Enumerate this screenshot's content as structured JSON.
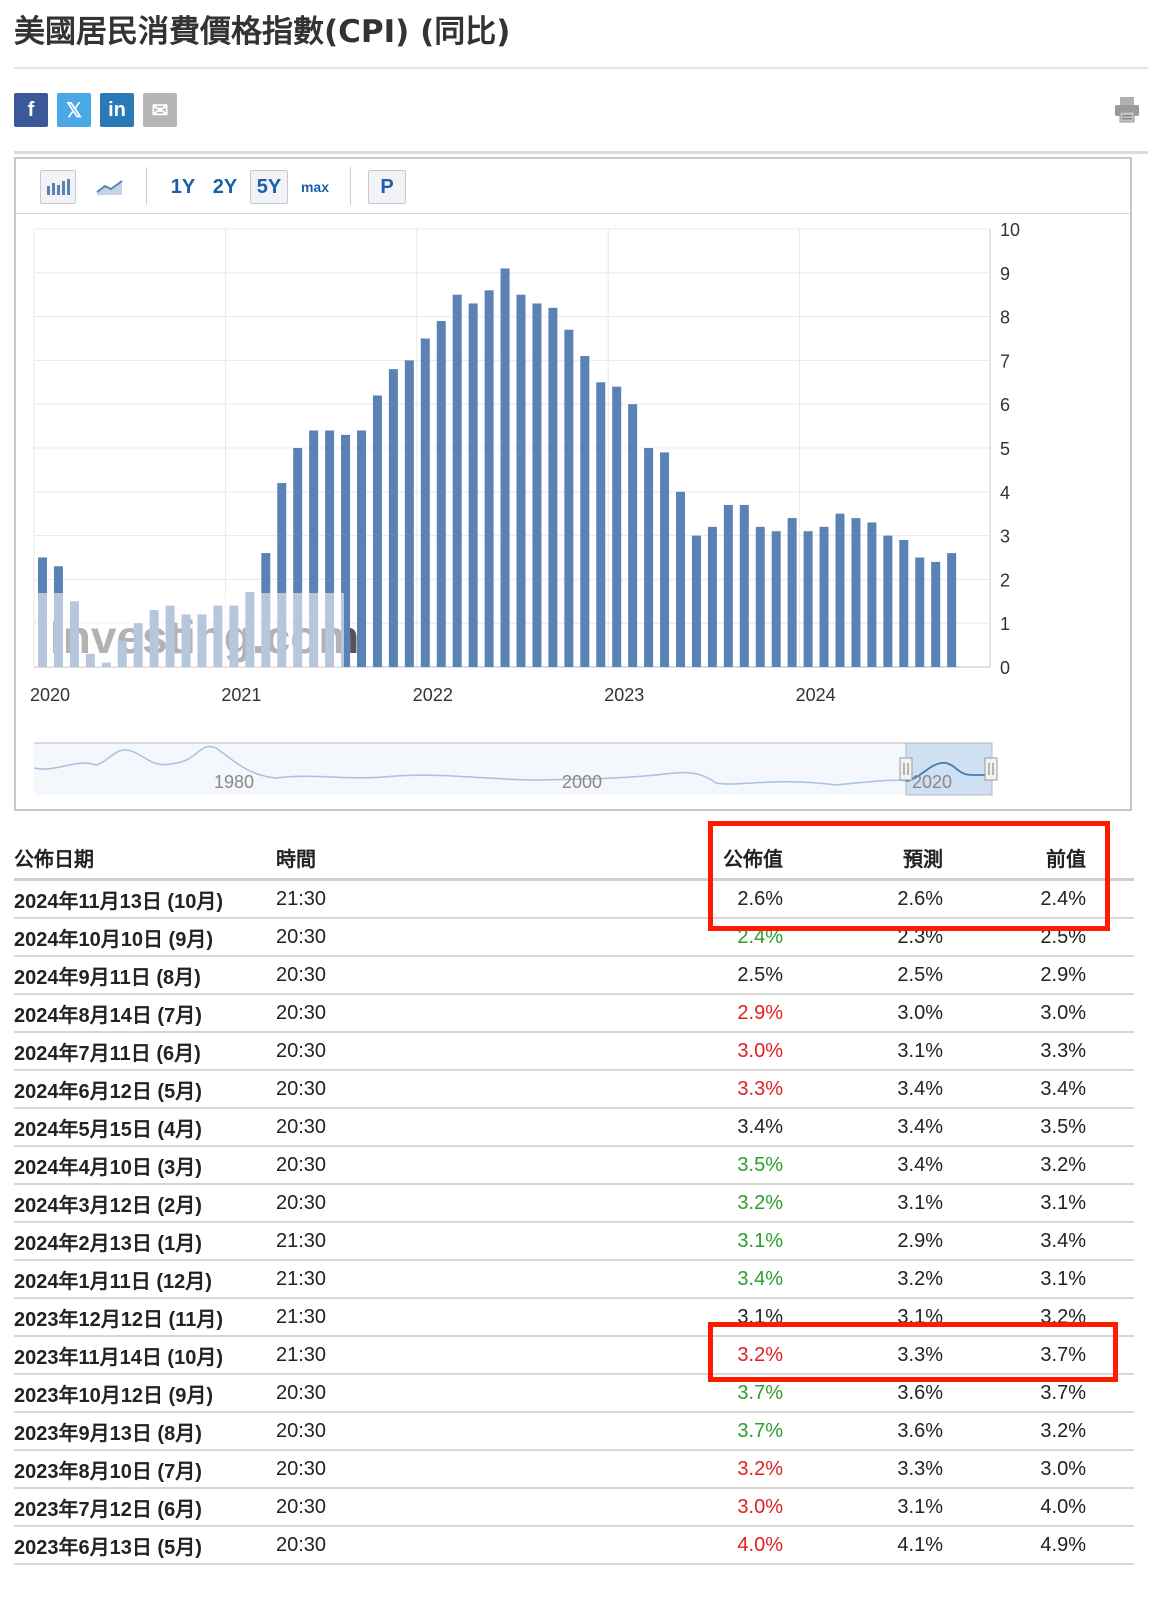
{
  "page": {
    "title": "美國居民消費價格指數(CPI) (同比)"
  },
  "share": [
    {
      "name": "facebook-share-button",
      "icon": "facebook-icon",
      "glyph": "f",
      "color": "#3b5998"
    },
    {
      "name": "twitter-share-button",
      "icon": "x-icon",
      "glyph": "𝕏",
      "color": "#4aa8e6"
    },
    {
      "name": "linkedin-share-button",
      "icon": "linkedin-icon",
      "glyph": "in",
      "color": "#2a7ab8"
    },
    {
      "name": "email-share-button",
      "icon": "mail-icon",
      "glyph": "✉",
      "color": "#b5b5b5"
    }
  ],
  "toolbar": {
    "bar_chart_icon": "bar-chart-icon",
    "area_chart_icon": "area-chart-icon",
    "ranges": [
      "1Y",
      "2Y",
      "5Y",
      "max"
    ],
    "selected_range": "5Y",
    "p_label": "P"
  },
  "chart_data": {
    "type": "bar",
    "title": "",
    "xlabel": "",
    "ylabel": "",
    "ylim": [
      0,
      10
    ],
    "yticks": [
      0,
      1,
      2,
      3,
      4,
      5,
      6,
      7,
      8,
      9,
      10
    ],
    "y_axis_side": "right",
    "x_tick_labels": [
      "2020",
      "2021",
      "2022",
      "2023",
      "2024"
    ],
    "grid": true,
    "color": "#5b82b4",
    "watermark": "Investing.com",
    "categories": [
      "2020-01",
      "2020-02",
      "2020-03",
      "2020-04",
      "2020-05",
      "2020-06",
      "2020-07",
      "2020-08",
      "2020-09",
      "2020-10",
      "2020-11",
      "2020-12",
      "2021-01",
      "2021-02",
      "2021-03",
      "2021-04",
      "2021-05",
      "2021-06",
      "2021-07",
      "2021-08",
      "2021-09",
      "2021-10",
      "2021-11",
      "2021-12",
      "2022-01",
      "2022-02",
      "2022-03",
      "2022-04",
      "2022-05",
      "2022-06",
      "2022-07",
      "2022-08",
      "2022-09",
      "2022-10",
      "2022-11",
      "2022-12",
      "2023-01",
      "2023-02",
      "2023-03",
      "2023-04",
      "2023-05",
      "2023-06",
      "2023-07",
      "2023-08",
      "2023-09",
      "2023-10",
      "2023-11",
      "2023-12",
      "2024-01",
      "2024-02",
      "2024-03",
      "2024-04",
      "2024-05",
      "2024-06",
      "2024-07",
      "2024-08",
      "2024-09",
      "2024-10"
    ],
    "values": [
      2.5,
      2.3,
      1.5,
      0.3,
      0.1,
      0.6,
      1.0,
      1.3,
      1.4,
      1.2,
      1.2,
      1.4,
      1.4,
      1.7,
      2.6,
      4.2,
      5.0,
      5.4,
      5.4,
      5.3,
      5.4,
      6.2,
      6.8,
      7.0,
      7.5,
      7.9,
      8.5,
      8.3,
      8.6,
      9.1,
      8.5,
      8.3,
      8.2,
      7.7,
      7.1,
      6.5,
      6.4,
      6.0,
      5.0,
      4.9,
      4.0,
      3.0,
      3.2,
      3.7,
      3.7,
      3.2,
      3.1,
      3.4,
      3.1,
      3.2,
      3.5,
      3.4,
      3.3,
      3.0,
      2.9,
      2.5,
      2.4,
      2.6
    ]
  },
  "navigator": {
    "labels": [
      "1980",
      "2000",
      "2020"
    ]
  },
  "table": {
    "headers": [
      "公佈日期",
      "時間",
      "公佈值",
      "預測",
      "前值"
    ],
    "rows": [
      {
        "date": "2024年11月13日 (10月)",
        "time": "21:30",
        "actual": "2.6%",
        "actual_color": "#222222",
        "forecast": "2.6%",
        "previous": "2.4%"
      },
      {
        "date": "2024年10月10日 (9月)",
        "time": "20:30",
        "actual": "2.4%",
        "actual_color": "#2d9e2d",
        "forecast": "2.3%",
        "previous": "2.5%"
      },
      {
        "date": "2024年9月11日 (8月)",
        "time": "20:30",
        "actual": "2.5%",
        "actual_color": "#222222",
        "forecast": "2.5%",
        "previous": "2.9%"
      },
      {
        "date": "2024年8月14日 (7月)",
        "time": "20:30",
        "actual": "2.9%",
        "actual_color": "#e21f1f",
        "forecast": "3.0%",
        "previous": "3.0%"
      },
      {
        "date": "2024年7月11日 (6月)",
        "time": "20:30",
        "actual": "3.0%",
        "actual_color": "#e21f1f",
        "forecast": "3.1%",
        "previous": "3.3%"
      },
      {
        "date": "2024年6月12日 (5月)",
        "time": "20:30",
        "actual": "3.3%",
        "actual_color": "#e21f1f",
        "forecast": "3.4%",
        "previous": "3.4%"
      },
      {
        "date": "2024年5月15日 (4月)",
        "time": "20:30",
        "actual": "3.4%",
        "actual_color": "#222222",
        "forecast": "3.4%",
        "previous": "3.5%"
      },
      {
        "date": "2024年4月10日 (3月)",
        "time": "20:30",
        "actual": "3.5%",
        "actual_color": "#2d9e2d",
        "forecast": "3.4%",
        "previous": "3.2%"
      },
      {
        "date": "2024年3月12日 (2月)",
        "time": "20:30",
        "actual": "3.2%",
        "actual_color": "#2d9e2d",
        "forecast": "3.1%",
        "previous": "3.1%"
      },
      {
        "date": "2024年2月13日 (1月)",
        "time": "21:30",
        "actual": "3.1%",
        "actual_color": "#2d9e2d",
        "forecast": "2.9%",
        "previous": "3.4%"
      },
      {
        "date": "2024年1月11日 (12月)",
        "time": "21:30",
        "actual": "3.4%",
        "actual_color": "#2d9e2d",
        "forecast": "3.2%",
        "previous": "3.1%"
      },
      {
        "date": "2023年12月12日 (11月)",
        "time": "21:30",
        "actual": "3.1%",
        "actual_color": "#222222",
        "forecast": "3.1%",
        "previous": "3.2%"
      },
      {
        "date": "2023年11月14日 (10月)",
        "time": "21:30",
        "actual": "3.2%",
        "actual_color": "#e21f1f",
        "forecast": "3.3%",
        "previous": "3.7%"
      },
      {
        "date": "2023年10月12日 (9月)",
        "time": "20:30",
        "actual": "3.7%",
        "actual_color": "#2d9e2d",
        "forecast": "3.6%",
        "previous": "3.7%"
      },
      {
        "date": "2023年9月13日 (8月)",
        "time": "20:30",
        "actual": "3.7%",
        "actual_color": "#2d9e2d",
        "forecast": "3.6%",
        "previous": "3.2%"
      },
      {
        "date": "2023年8月10日 (7月)",
        "time": "20:30",
        "actual": "3.2%",
        "actual_color": "#e21f1f",
        "forecast": "3.3%",
        "previous": "3.0%"
      },
      {
        "date": "2023年7月12日 (6月)",
        "time": "20:30",
        "actual": "3.0%",
        "actual_color": "#e21f1f",
        "forecast": "3.1%",
        "previous": "4.0%"
      },
      {
        "date": "2023年6月13日 (5月)",
        "time": "20:30",
        "actual": "4.0%",
        "actual_color": "#e21f1f",
        "forecast": "4.1%",
        "previous": "4.9%"
      }
    ]
  }
}
